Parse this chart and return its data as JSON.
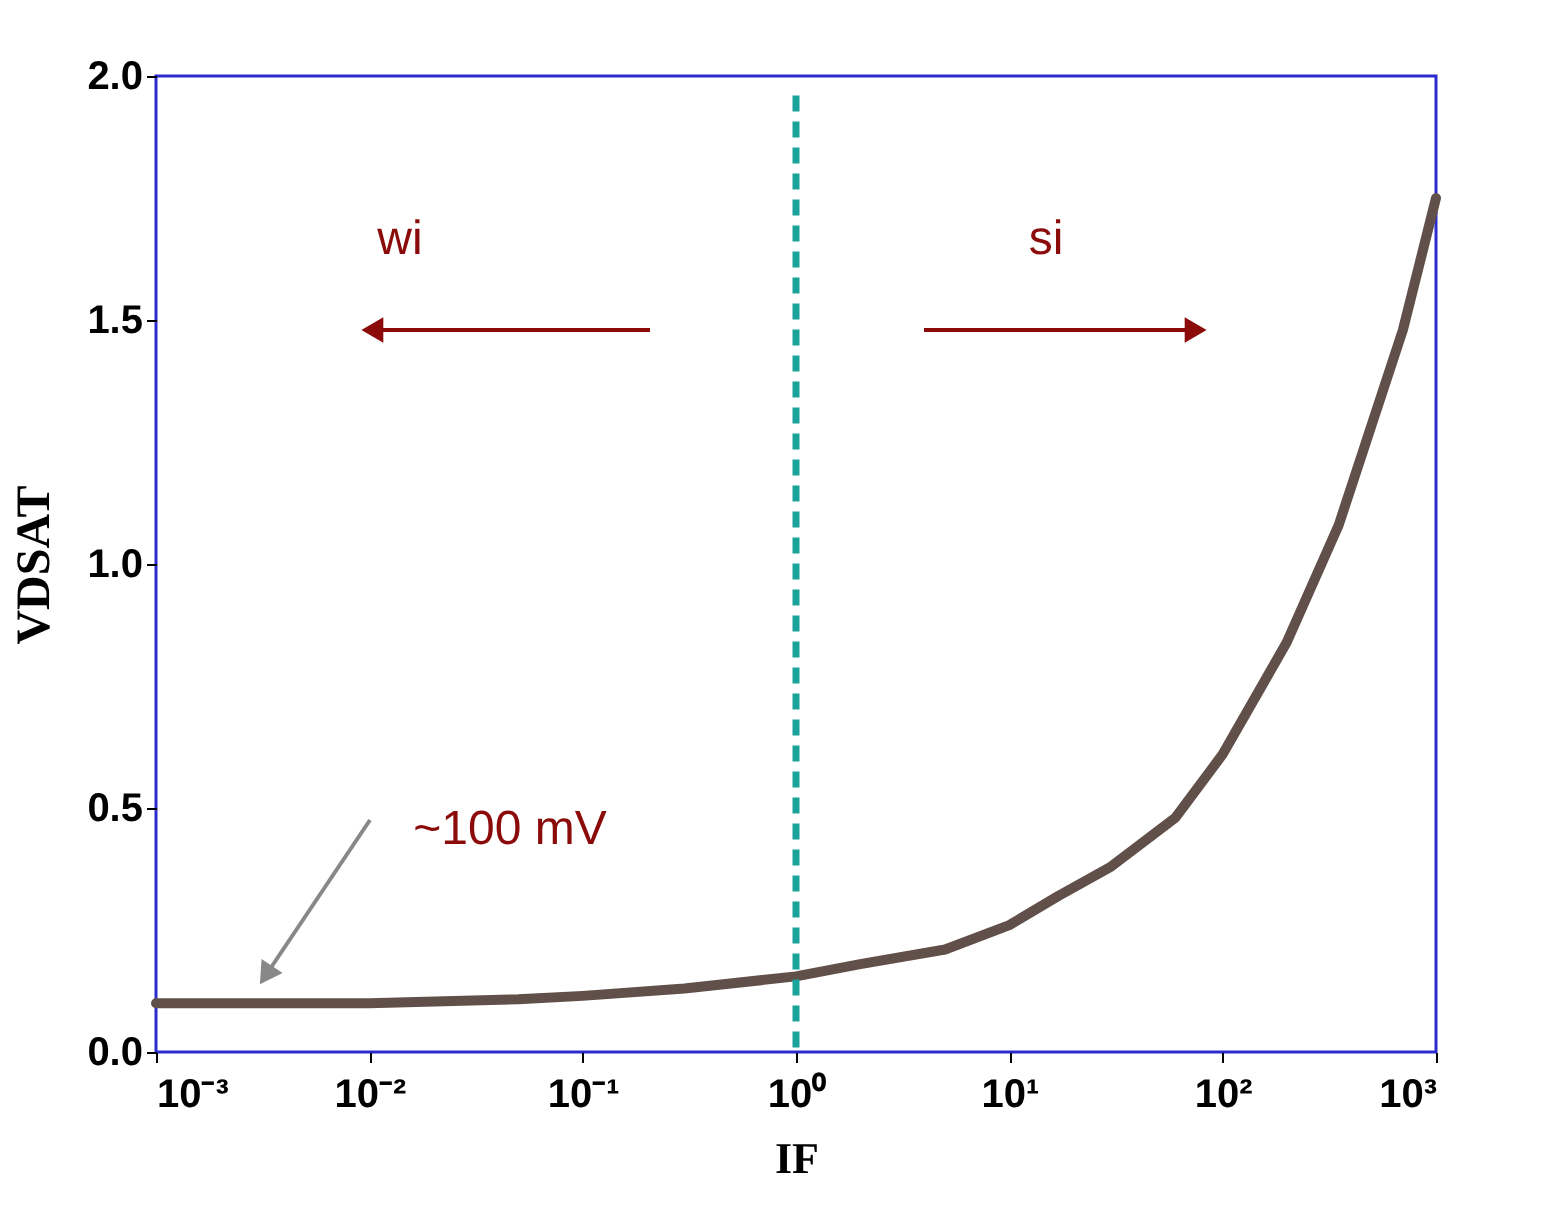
{
  "chart_data": {
    "type": "line",
    "xlabel": "IF",
    "ylabel": "VDSAT",
    "log": "x",
    "xlim": [
      0.001,
      1000
    ],
    "ylim": [
      0,
      2.0
    ],
    "xticks": [
      {
        "value": 0.001,
        "label": "10⁻³"
      },
      {
        "value": 0.01,
        "label": "10⁻²"
      },
      {
        "value": 0.1,
        "label": "10⁻¹"
      },
      {
        "value": 1,
        "label": "10⁰"
      },
      {
        "value": 10,
        "label": "10¹"
      },
      {
        "value": 100,
        "label": "10²"
      },
      {
        "value": 1000,
        "label": "10³"
      }
    ],
    "yticks": [
      {
        "value": 0,
        "label": "0.0"
      },
      0.5,
      {
        "value": 1,
        "label": "1.0"
      },
      1.5,
      {
        "value": 2,
        "label": "2.0"
      }
    ],
    "grid": false,
    "marker": "none",
    "line_style": "solid",
    "series": [
      {
        "color": "#615049",
        "x": [
          0.001,
          0.01,
          0.05,
          0.1,
          0.3,
          1,
          2,
          5,
          10,
          17,
          30,
          60,
          100,
          200,
          350,
          700,
          1000
        ],
        "values": [
          0.1,
          0.1,
          0.108,
          0.115,
          0.13,
          0.155,
          0.18,
          0.21,
          0.26,
          0.32,
          0.38,
          0.48,
          0.61,
          0.84,
          1.08,
          1.48,
          1.75
        ]
      }
    ],
    "ref_lines": [
      {
        "axis": "x",
        "value": 1,
        "color": "#1aa39a",
        "line_style": "dashed"
      }
    ],
    "annotations": [
      "wi",
      "si",
      "~100 mV"
    ]
  }
}
